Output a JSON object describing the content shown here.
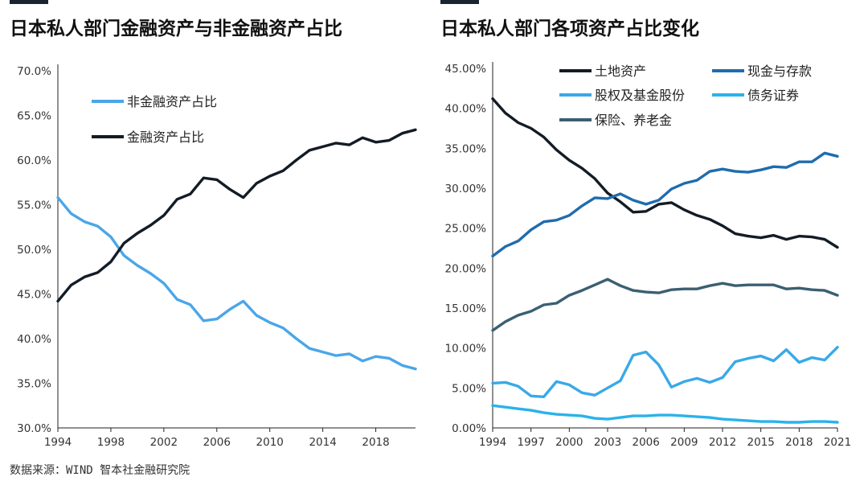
{
  "source_note": "数据来源：WIND 智本社金融研究院",
  "colors": {
    "black_series": "#131c26",
    "light_blue": "#4aa6e8",
    "dark_blue": "#1f6cae",
    "mid_blue": "#38a9e8",
    "light_blue2": "#2ab2ea",
    "gray_blue": "#3b5f72",
    "axis_text": "#333333"
  },
  "chart_data": [
    {
      "type": "line",
      "title": "日本私人部门金融资产与非金融资产占比",
      "xlabel": "",
      "ylabel": "",
      "x": [
        1994,
        1995,
        1996,
        1997,
        1998,
        1999,
        2000,
        2001,
        2002,
        2003,
        2004,
        2005,
        2006,
        2007,
        2008,
        2009,
        2010,
        2011,
        2012,
        2013,
        2014,
        2015,
        2016,
        2017,
        2018,
        2019,
        2020,
        2021
      ],
      "xlim": [
        1994,
        2021
      ],
      "xticks": [
        "1994",
        "1998",
        "2002",
        "2006",
        "2010",
        "2014",
        "2018"
      ],
      "ylim": [
        30,
        70
      ],
      "yticks": [
        "30.0%",
        "35.0%",
        "40.0%",
        "45.0%",
        "50.0%",
        "55.0%",
        "60.0%",
        "65.0%",
        "70.0%"
      ],
      "grid": false,
      "legend": "top-left",
      "series": [
        {
          "name": "非金融资产占比",
          "color": "#4aa6e8",
          "values": [
            55.8,
            54.0,
            53.1,
            52.6,
            51.4,
            49.3,
            48.2,
            47.3,
            46.2,
            44.4,
            43.8,
            42.0,
            42.2,
            43.3,
            44.2,
            42.6,
            41.8,
            41.2,
            40.0,
            38.9,
            38.5,
            38.1,
            38.3,
            37.5,
            38.0,
            37.8,
            37.0,
            36.6
          ]
        },
        {
          "name": "金融资产占比",
          "color": "#131c26",
          "values": [
            44.2,
            46.0,
            46.9,
            47.4,
            48.6,
            50.7,
            51.8,
            52.7,
            53.8,
            55.6,
            56.2,
            58.0,
            57.8,
            56.7,
            55.8,
            57.4,
            58.2,
            58.8,
            60.0,
            61.1,
            61.5,
            61.9,
            61.7,
            62.5,
            62.0,
            62.2,
            63.0,
            63.4
          ]
        }
      ]
    },
    {
      "type": "line",
      "title": "日本私人部门各项资产占比变化",
      "xlabel": "",
      "ylabel": "",
      "x": [
        1994,
        1995,
        1996,
        1997,
        1998,
        1999,
        2000,
        2001,
        2002,
        2003,
        2004,
        2005,
        2006,
        2007,
        2008,
        2009,
        2010,
        2011,
        2012,
        2013,
        2014,
        2015,
        2016,
        2017,
        2018,
        2019,
        2020,
        2021
      ],
      "xlim": [
        1994,
        2021
      ],
      "xticks": [
        "1994",
        "1997",
        "2000",
        "2003",
        "2006",
        "2009",
        "2012",
        "2015",
        "2018",
        "2021"
      ],
      "ylim": [
        0,
        45
      ],
      "yticks": [
        "0.00%",
        "5.00%",
        "10.00%",
        "15.00%",
        "20.00%",
        "25.00%",
        "30.00%",
        "35.00%",
        "40.00%",
        "45.00%"
      ],
      "grid": false,
      "legend": "top",
      "series": [
        {
          "name": "土地资产",
          "color": "#131c26",
          "values": [
            41.2,
            39.4,
            38.2,
            37.5,
            36.4,
            34.8,
            33.5,
            32.5,
            31.2,
            29.4,
            28.3,
            27.0,
            27.1,
            28.0,
            28.2,
            27.3,
            26.6,
            26.1,
            25.3,
            24.3,
            24.0,
            23.8,
            24.1,
            23.6,
            24.0,
            23.9,
            23.6,
            22.6
          ]
        },
        {
          "name": "现金与存款",
          "color": "#1f6cae",
          "values": [
            21.5,
            22.7,
            23.4,
            24.8,
            25.8,
            26.0,
            26.6,
            27.8,
            28.8,
            28.7,
            29.3,
            28.5,
            28.0,
            28.5,
            29.9,
            30.6,
            31.0,
            32.1,
            32.4,
            32.1,
            32.0,
            32.3,
            32.7,
            32.6,
            33.3,
            33.3,
            34.4,
            34.0
          ]
        },
        {
          "name": "股权及基金股份",
          "color": "#38a9e8",
          "values": [
            5.6,
            5.7,
            5.2,
            4.0,
            3.9,
            5.8,
            5.4,
            4.4,
            4.1,
            5.0,
            5.9,
            9.1,
            9.5,
            7.9,
            5.1,
            5.8,
            6.2,
            5.7,
            6.3,
            8.3,
            8.7,
            9.0,
            8.4,
            9.8,
            8.2,
            8.8,
            8.5,
            10.1
          ]
        },
        {
          "name": "债务证券",
          "color": "#2ab2ea",
          "values": [
            2.8,
            2.6,
            2.4,
            2.2,
            1.9,
            1.7,
            1.6,
            1.5,
            1.2,
            1.1,
            1.3,
            1.5,
            1.5,
            1.6,
            1.6,
            1.5,
            1.4,
            1.3,
            1.1,
            1.0,
            0.9,
            0.8,
            0.8,
            0.7,
            0.7,
            0.8,
            0.8,
            0.7
          ]
        },
        {
          "name": "保险、养老金",
          "color": "#3b5f72",
          "values": [
            12.2,
            13.3,
            14.1,
            14.6,
            15.4,
            15.6,
            16.6,
            17.2,
            17.9,
            18.6,
            17.8,
            17.2,
            17.0,
            16.9,
            17.3,
            17.4,
            17.4,
            17.8,
            18.1,
            17.8,
            17.9,
            17.9,
            17.9,
            17.4,
            17.5,
            17.3,
            17.2,
            16.6
          ]
        }
      ]
    }
  ]
}
